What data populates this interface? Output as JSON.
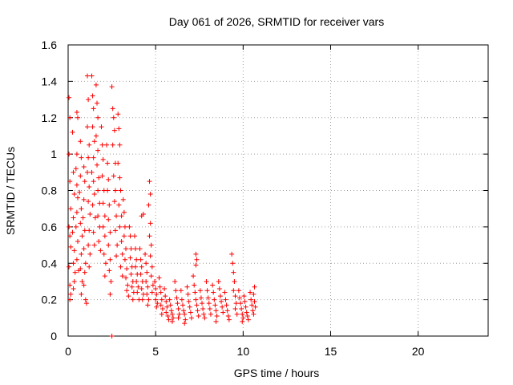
{
  "chart_data": {
    "type": "scatter",
    "title": "Day 061 of 2026, SRMTID for receiver vars",
    "xlabel": "GPS time / hours",
    "ylabel": "SRMTID / TECUs",
    "xlim": [
      0,
      24
    ],
    "ylim": [
      0,
      1.6
    ],
    "grid": true,
    "marker": "+",
    "color": "#ff0000",
    "x_ticks": [
      {
        "value": 0,
        "label": "0"
      },
      {
        "value": 5,
        "label": "5"
      },
      {
        "value": 10,
        "label": "10"
      },
      {
        "value": 15,
        "label": "15"
      },
      {
        "value": 20,
        "label": "20"
      }
    ],
    "y_ticks": [
      {
        "value": 0,
        "label": "0"
      },
      {
        "value": 0.2,
        "label": "0.2"
      },
      {
        "value": 0.4,
        "label": "0.4"
      },
      {
        "value": 0.6,
        "label": "0.6"
      },
      {
        "value": 0.8,
        "label": "0.8"
      },
      {
        "value": 1.0,
        "label": "1"
      },
      {
        "value": 1.2,
        "label": "1.2"
      },
      {
        "value": 1.4,
        "label": "1.4"
      },
      {
        "value": 1.6,
        "label": "1.6"
      }
    ],
    "points": [
      [
        0.05,
        1.31
      ],
      [
        0.1,
        1.2
      ],
      [
        0.05,
        1.0
      ],
      [
        0.1,
        0.85
      ],
      [
        0.15,
        0.7
      ],
      [
        0.05,
        0.6
      ],
      [
        0.1,
        0.55
      ],
      [
        0.15,
        0.49
      ],
      [
        0.05,
        0.38
      ],
      [
        0.1,
        0.28
      ],
      [
        0.15,
        0.23
      ],
      [
        0.1,
        0.2
      ],
      [
        0.25,
        1.12
      ],
      [
        0.3,
        0.9
      ],
      [
        0.35,
        0.78
      ],
      [
        0.3,
        0.65
      ],
      [
        0.25,
        0.57
      ],
      [
        0.35,
        0.47
      ],
      [
        0.3,
        0.4
      ],
      [
        0.4,
        0.35
      ],
      [
        0.35,
        0.3
      ],
      [
        0.3,
        0.26
      ],
      [
        0.5,
        1.23
      ],
      [
        0.55,
        1.2
      ],
      [
        0.5,
        1.0
      ],
      [
        0.45,
        0.92
      ],
      [
        0.5,
        0.83
      ],
      [
        0.55,
        0.76
      ],
      [
        0.5,
        0.68
      ],
      [
        0.45,
        0.6
      ],
      [
        0.55,
        0.52
      ],
      [
        0.5,
        0.42
      ],
      [
        0.6,
        0.36
      ],
      [
        0.7,
        1.07
      ],
      [
        0.75,
        0.98
      ],
      [
        0.7,
        0.88
      ],
      [
        0.65,
        0.79
      ],
      [
        0.75,
        0.7
      ],
      [
        0.7,
        0.62
      ],
      [
        0.8,
        0.55
      ],
      [
        0.75,
        0.45
      ],
      [
        0.7,
        0.37
      ],
      [
        0.8,
        0.3
      ],
      [
        0.75,
        0.23
      ],
      [
        0.9,
        0.93
      ],
      [
        0.95,
        0.85
      ],
      [
        0.9,
        0.75
      ],
      [
        0.85,
        0.65
      ],
      [
        0.95,
        0.58
      ],
      [
        0.9,
        0.48
      ],
      [
        1.0,
        0.4
      ],
      [
        0.95,
        0.35
      ],
      [
        0.9,
        0.28
      ],
      [
        1.0,
        0.2
      ],
      [
        1.05,
        0.18
      ],
      [
        1.1,
        1.43
      ],
      [
        1.15,
        1.3
      ],
      [
        1.1,
        1.15
      ],
      [
        1.2,
        1.05
      ],
      [
        1.15,
        0.98
      ],
      [
        1.1,
        0.9
      ],
      [
        1.2,
        0.82
      ],
      [
        1.15,
        0.74
      ],
      [
        1.25,
        0.67
      ],
      [
        1.2,
        0.58
      ],
      [
        1.15,
        0.5
      ],
      [
        1.25,
        0.45
      ],
      [
        1.2,
        0.38
      ],
      [
        1.35,
        1.43
      ],
      [
        1.4,
        1.32
      ],
      [
        1.45,
        1.25
      ],
      [
        1.4,
        1.15
      ],
      [
        1.5,
        1.07
      ],
      [
        1.45,
        0.98
      ],
      [
        1.35,
        0.9
      ],
      [
        1.45,
        0.85
      ],
      [
        1.5,
        0.78
      ],
      [
        1.4,
        0.72
      ],
      [
        1.55,
        0.65
      ],
      [
        1.45,
        0.57
      ],
      [
        1.5,
        0.5
      ],
      [
        1.6,
        1.38
      ],
      [
        1.65,
        1.28
      ],
      [
        1.7,
        1.2
      ],
      [
        1.6,
        1.1
      ],
      [
        1.7,
        1.02
      ],
      [
        1.65,
        0.94
      ],
      [
        1.75,
        0.87
      ],
      [
        1.7,
        0.8
      ],
      [
        1.8,
        0.73
      ],
      [
        1.7,
        0.66
      ],
      [
        1.8,
        0.6
      ],
      [
        1.75,
        0.52
      ],
      [
        1.85,
        0.47
      ],
      [
        1.9,
        1.15
      ],
      [
        1.95,
        1.05
      ],
      [
        2.0,
        0.97
      ],
      [
        1.95,
        0.88
      ],
      [
        2.05,
        0.8
      ],
      [
        2.0,
        0.73
      ],
      [
        2.1,
        0.66
      ],
      [
        2.0,
        0.6
      ],
      [
        2.1,
        0.55
      ],
      [
        2.05,
        0.45
      ],
      [
        2.15,
        0.4
      ],
      [
        2.1,
        0.33
      ],
      [
        2.2,
        1.05
      ],
      [
        2.25,
        0.95
      ],
      [
        2.3,
        0.86
      ],
      [
        2.25,
        0.8
      ],
      [
        2.35,
        0.72
      ],
      [
        2.3,
        0.64
      ],
      [
        2.4,
        0.57
      ],
      [
        2.3,
        0.5
      ],
      [
        2.4,
        0.42
      ],
      [
        2.35,
        0.36
      ],
      [
        2.45,
        0.3
      ],
      [
        2.4,
        0.23
      ],
      [
        2.5,
        1.37
      ],
      [
        2.55,
        1.25
      ],
      [
        2.6,
        1.2
      ],
      [
        2.65,
        1.13
      ],
      [
        2.55,
        1.05
      ],
      [
        2.7,
        0.95
      ],
      [
        2.6,
        0.88
      ],
      [
        2.7,
        0.8
      ],
      [
        2.65,
        0.74
      ],
      [
        2.75,
        0.66
      ],
      [
        2.7,
        0.58
      ],
      [
        2.8,
        0.5
      ],
      [
        2.75,
        0.44
      ],
      [
        2.85,
        1.22
      ],
      [
        2.9,
        1.14
      ],
      [
        2.95,
        1.05
      ],
      [
        2.85,
        0.95
      ],
      [
        2.95,
        0.87
      ],
      [
        3.0,
        0.8
      ],
      [
        2.9,
        0.72
      ],
      [
        3.05,
        0.66
      ],
      [
        2.95,
        0.6
      ],
      [
        3.05,
        0.52
      ],
      [
        3.1,
        0.45
      ],
      [
        3.0,
        0.38
      ],
      [
        3.1,
        0.33
      ],
      [
        3.15,
        0.75
      ],
      [
        3.2,
        0.68
      ],
      [
        3.25,
        0.6
      ],
      [
        3.2,
        0.55
      ],
      [
        3.3,
        0.48
      ],
      [
        3.25,
        0.42
      ],
      [
        3.35,
        0.37
      ],
      [
        3.3,
        0.32
      ],
      [
        3.4,
        0.28
      ],
      [
        3.35,
        0.25
      ],
      [
        3.45,
        0.22
      ],
      [
        3.5,
        0.6
      ],
      [
        3.55,
        0.55
      ],
      [
        3.6,
        0.48
      ],
      [
        3.55,
        0.43
      ],
      [
        3.65,
        0.38
      ],
      [
        3.6,
        0.34
      ],
      [
        3.7,
        0.3
      ],
      [
        3.65,
        0.27
      ],
      [
        3.75,
        0.24
      ],
      [
        3.7,
        0.2
      ],
      [
        3.8,
        0.55
      ],
      [
        3.85,
        0.48
      ],
      [
        3.9,
        0.42
      ],
      [
        3.85,
        0.38
      ],
      [
        3.95,
        0.34
      ],
      [
        3.9,
        0.3
      ],
      [
        4.0,
        0.27
      ],
      [
        3.95,
        0.24
      ],
      [
        4.05,
        0.2
      ],
      [
        4.1,
        0.48
      ],
      [
        4.15,
        0.42
      ],
      [
        4.2,
        0.38
      ],
      [
        4.15,
        0.34
      ],
      [
        4.25,
        0.3
      ],
      [
        4.2,
        0.26
      ],
      [
        4.3,
        0.23
      ],
      [
        4.25,
        0.2
      ],
      [
        4.3,
        0.67
      ],
      [
        4.2,
        0.66
      ],
      [
        4.4,
        0.45
      ],
      [
        4.45,
        0.4
      ],
      [
        4.5,
        0.35
      ],
      [
        4.45,
        0.3
      ],
      [
        4.55,
        0.27
      ],
      [
        4.5,
        0.23
      ],
      [
        4.6,
        0.2
      ],
      [
        4.55,
        0.17
      ],
      [
        4.65,
        0.85
      ],
      [
        4.7,
        0.78
      ],
      [
        4.6,
        0.72
      ],
      [
        4.7,
        0.62
      ],
      [
        4.65,
        0.55
      ],
      [
        4.75,
        0.5
      ],
      [
        4.7,
        0.44
      ],
      [
        4.8,
        0.38
      ],
      [
        4.75,
        0.33
      ],
      [
        4.85,
        0.28
      ],
      [
        4.8,
        0.24
      ],
      [
        4.95,
        0.3
      ],
      [
        5.0,
        0.26
      ],
      [
        5.05,
        0.23
      ],
      [
        5.0,
        0.2
      ],
      [
        5.1,
        0.18
      ],
      [
        5.05,
        0.16
      ],
      [
        5.2,
        0.32
      ],
      [
        5.25,
        0.27
      ],
      [
        5.3,
        0.24
      ],
      [
        5.35,
        0.2
      ],
      [
        5.3,
        0.17
      ],
      [
        5.4,
        0.15
      ],
      [
        5.35,
        0.12
      ],
      [
        5.5,
        0.26
      ],
      [
        5.55,
        0.22
      ],
      [
        5.6,
        0.19
      ],
      [
        5.65,
        0.16
      ],
      [
        5.6,
        0.13
      ],
      [
        5.7,
        0.11
      ],
      [
        5.75,
        0.09
      ],
      [
        5.8,
        0.2
      ],
      [
        5.85,
        0.17
      ],
      [
        5.9,
        0.14
      ],
      [
        5.95,
        0.12
      ],
      [
        6.0,
        0.1
      ],
      [
        5.95,
        0.08
      ],
      [
        6.1,
        0.3
      ],
      [
        6.15,
        0.25
      ],
      [
        6.2,
        0.21
      ],
      [
        6.25,
        0.18
      ],
      [
        6.3,
        0.15
      ],
      [
        6.35,
        0.12
      ],
      [
        6.3,
        0.1
      ],
      [
        6.45,
        0.25
      ],
      [
        6.5,
        0.2
      ],
      [
        6.55,
        0.17
      ],
      [
        6.6,
        0.14
      ],
      [
        6.65,
        0.12
      ],
      [
        6.7,
        0.09
      ],
      [
        6.65,
        0.07
      ],
      [
        6.8,
        0.27
      ],
      [
        6.85,
        0.23
      ],
      [
        6.9,
        0.19
      ],
      [
        6.95,
        0.16
      ],
      [
        7.0,
        0.13
      ],
      [
        7.05,
        0.1
      ],
      [
        7.15,
        0.33
      ],
      [
        7.2,
        0.28
      ],
      [
        7.25,
        0.24
      ],
      [
        7.3,
        0.2
      ],
      [
        7.35,
        0.17
      ],
      [
        7.4,
        0.14
      ],
      [
        7.45,
        0.11
      ],
      [
        7.3,
        0.45
      ],
      [
        7.35,
        0.42
      ],
      [
        7.3,
        0.39
      ],
      [
        7.55,
        0.25
      ],
      [
        7.6,
        0.21
      ],
      [
        7.65,
        0.18
      ],
      [
        7.7,
        0.15
      ],
      [
        7.75,
        0.12
      ],
      [
        7.8,
        0.1
      ],
      [
        7.9,
        0.3
      ],
      [
        7.95,
        0.25
      ],
      [
        8.0,
        0.21
      ],
      [
        8.05,
        0.18
      ],
      [
        8.1,
        0.15
      ],
      [
        8.15,
        0.12
      ],
      [
        8.25,
        0.28
      ],
      [
        8.3,
        0.24
      ],
      [
        8.35,
        0.2
      ],
      [
        8.4,
        0.17
      ],
      [
        8.45,
        0.14
      ],
      [
        8.5,
        0.11
      ],
      [
        8.45,
        0.08
      ],
      [
        8.6,
        0.3
      ],
      [
        8.65,
        0.26
      ],
      [
        8.7,
        0.22
      ],
      [
        8.75,
        0.19
      ],
      [
        8.8,
        0.16
      ],
      [
        8.85,
        0.13
      ],
      [
        8.95,
        0.24
      ],
      [
        9.0,
        0.2
      ],
      [
        9.05,
        0.17
      ],
      [
        9.1,
        0.14
      ],
      [
        9.15,
        0.11
      ],
      [
        9.2,
        0.09
      ],
      [
        9.35,
        0.45
      ],
      [
        9.4,
        0.4
      ],
      [
        9.45,
        0.35
      ],
      [
        9.5,
        0.3
      ],
      [
        9.45,
        0.25
      ],
      [
        9.55,
        0.22
      ],
      [
        9.6,
        0.18
      ],
      [
        9.55,
        0.15
      ],
      [
        9.65,
        0.12
      ],
      [
        9.75,
        0.25
      ],
      [
        9.8,
        0.21
      ],
      [
        9.85,
        0.18
      ],
      [
        9.9,
        0.15
      ],
      [
        9.95,
        0.12
      ],
      [
        10.0,
        0.1
      ],
      [
        9.95,
        0.08
      ],
      [
        10.05,
        0.22
      ],
      [
        10.1,
        0.19
      ],
      [
        10.15,
        0.16
      ],
      [
        10.2,
        0.13
      ],
      [
        10.25,
        0.11
      ],
      [
        10.3,
        0.09
      ],
      [
        10.4,
        0.24
      ],
      [
        10.45,
        0.2
      ],
      [
        10.5,
        0.17
      ],
      [
        10.55,
        0.14
      ],
      [
        10.6,
        0.12
      ],
      [
        10.65,
        0.27
      ],
      [
        10.6,
        0.23
      ],
      [
        10.65,
        0.19
      ],
      [
        10.7,
        0.16
      ],
      [
        2.5,
        0.0
      ]
    ]
  }
}
